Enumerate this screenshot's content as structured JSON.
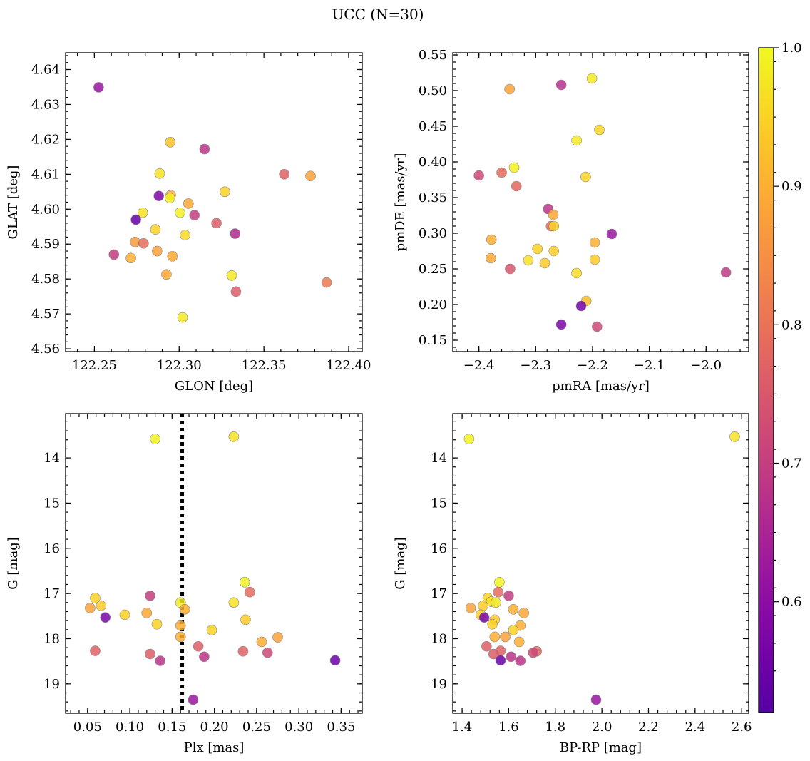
{
  "figure_title": "UCC (N=30)",
  "colorbar": {
    "min": 0.52,
    "max": 1.0,
    "ticks": [
      0.6,
      0.7,
      0.8,
      0.9,
      1.0
    ],
    "tick_labels": [
      "0.6",
      "0.7",
      "0.8",
      "0.9",
      "1.0"
    ],
    "colormap": "plasma"
  },
  "chart_data": [
    {
      "id": "glon-glat",
      "type": "scatter",
      "xlabel": "GLON [deg]",
      "ylabel": "GLAT [deg]",
      "xlim": [
        122.233,
        122.408
      ],
      "ylim": [
        4.5592,
        4.6448
      ],
      "y_inverted": false,
      "xticks": [
        122.25,
        122.3,
        122.35,
        122.4
      ],
      "xtick_labels": [
        "122.25",
        "122.30",
        "122.35",
        "122.40"
      ],
      "yticks": [
        4.56,
        4.57,
        4.58,
        4.59,
        4.6,
        4.61,
        4.62,
        4.63,
        4.64
      ],
      "ytick_labels": [
        "4.56",
        "4.57",
        "4.58",
        "4.59",
        "4.60",
        "4.61",
        "4.62",
        "4.63",
        "4.64"
      ],
      "points": [
        {
          "x": 122.2525,
          "y": 4.6349,
          "c": 0.62
        },
        {
          "x": 122.2947,
          "y": 4.6192,
          "c": 0.93
        },
        {
          "x": 122.315,
          "y": 4.6172,
          "c": 0.68
        },
        {
          "x": 122.2885,
          "y": 4.6102,
          "c": 0.97
        },
        {
          "x": 122.362,
          "y": 4.61,
          "c": 0.77
        },
        {
          "x": 122.3775,
          "y": 4.6095,
          "c": 0.88
        },
        {
          "x": 122.327,
          "y": 4.605,
          "c": 0.95
        },
        {
          "x": 122.288,
          "y": 4.6038,
          "c": 0.58
        },
        {
          "x": 122.295,
          "y": 4.604,
          "c": 0.9
        },
        {
          "x": 122.2945,
          "y": 4.6032,
          "c": 0.99
        },
        {
          "x": 122.3055,
          "y": 4.6016,
          "c": 0.89
        },
        {
          "x": 122.2785,
          "y": 4.599,
          "c": 0.97
        },
        {
          "x": 122.3005,
          "y": 4.599,
          "c": 0.99
        },
        {
          "x": 122.309,
          "y": 4.5983,
          "c": 0.7
        },
        {
          "x": 122.2745,
          "y": 4.597,
          "c": 0.54
        },
        {
          "x": 122.322,
          "y": 4.596,
          "c": 0.76
        },
        {
          "x": 122.286,
          "y": 4.5942,
          "c": 0.95
        },
        {
          "x": 122.333,
          "y": 4.593,
          "c": 0.66
        },
        {
          "x": 122.3035,
          "y": 4.5926,
          "c": 0.96
        },
        {
          "x": 122.274,
          "y": 4.5906,
          "c": 0.87
        },
        {
          "x": 122.279,
          "y": 4.5902,
          "c": 0.79
        },
        {
          "x": 122.287,
          "y": 4.588,
          "c": 0.88
        },
        {
          "x": 122.2615,
          "y": 4.587,
          "c": 0.7
        },
        {
          "x": 122.296,
          "y": 4.5865,
          "c": 0.89
        },
        {
          "x": 122.2715,
          "y": 4.586,
          "c": 0.9
        },
        {
          "x": 122.2925,
          "y": 4.5813,
          "c": 0.89
        },
        {
          "x": 122.331,
          "y": 4.581,
          "c": 0.98
        },
        {
          "x": 122.387,
          "y": 4.579,
          "c": 0.81
        },
        {
          "x": 122.3335,
          "y": 4.5764,
          "c": 0.76
        },
        {
          "x": 122.302,
          "y": 4.569,
          "c": 0.98
        }
      ]
    },
    {
      "id": "pm",
      "type": "scatter",
      "xlabel": "pmRA [mas/yr]",
      "ylabel": "pmDE [mas/yr]",
      "xlim": [
        -2.446,
        -1.925
      ],
      "ylim": [
        0.134,
        0.553
      ],
      "y_inverted": false,
      "xticks": [
        -2.4,
        -2.3,
        -2.2,
        -2.1,
        -2.0
      ],
      "xtick_labels": [
        "−2.4",
        "−2.3",
        "−2.2",
        "−2.1",
        "−2.0"
      ],
      "yticks": [
        0.15,
        0.2,
        0.25,
        0.3,
        0.35,
        0.4,
        0.45,
        0.5,
        0.55
      ],
      "ytick_labels": [
        "0.15",
        "0.20",
        "0.25",
        "0.30",
        "0.35",
        "0.40",
        "0.45",
        "0.50",
        "0.55"
      ],
      "points": [
        {
          "x": -2.201,
          "y": 0.517,
          "c": 0.98
        },
        {
          "x": -2.255,
          "y": 0.508,
          "c": 0.67
        },
        {
          "x": -2.346,
          "y": 0.502,
          "c": 0.88
        },
        {
          "x": -2.188,
          "y": 0.445,
          "c": 0.95
        },
        {
          "x": -2.228,
          "y": 0.43,
          "c": 0.98
        },
        {
          "x": -2.338,
          "y": 0.392,
          "c": 0.99
        },
        {
          "x": -2.36,
          "y": 0.385,
          "c": 0.79
        },
        {
          "x": -2.4,
          "y": 0.381,
          "c": 0.72
        },
        {
          "x": -2.212,
          "y": 0.379,
          "c": 0.95
        },
        {
          "x": -2.334,
          "y": 0.366,
          "c": 0.78
        },
        {
          "x": -2.278,
          "y": 0.334,
          "c": 0.68
        },
        {
          "x": -2.269,
          "y": 0.326,
          "c": 0.89
        },
        {
          "x": -2.166,
          "y": 0.299,
          "c": 0.62
        },
        {
          "x": -2.273,
          "y": 0.31,
          "c": 0.79
        },
        {
          "x": -2.268,
          "y": 0.31,
          "c": 0.95
        },
        {
          "x": -2.378,
          "y": 0.291,
          "c": 0.9
        },
        {
          "x": -2.196,
          "y": 0.287,
          "c": 0.9
        },
        {
          "x": -2.297,
          "y": 0.278,
          "c": 0.95
        },
        {
          "x": -2.268,
          "y": 0.275,
          "c": 0.94
        },
        {
          "x": -2.379,
          "y": 0.265,
          "c": 0.89
        },
        {
          "x": -2.196,
          "y": 0.263,
          "c": 0.94
        },
        {
          "x": -2.313,
          "y": 0.262,
          "c": 0.97
        },
        {
          "x": -2.284,
          "y": 0.258,
          "c": 0.94
        },
        {
          "x": -2.345,
          "y": 0.25,
          "c": 0.75
        },
        {
          "x": -1.965,
          "y": 0.245,
          "c": 0.69
        },
        {
          "x": -2.228,
          "y": 0.244,
          "c": 0.96
        },
        {
          "x": -2.211,
          "y": 0.205,
          "c": 0.92
        },
        {
          "x": -2.22,
          "y": 0.198,
          "c": 0.56
        },
        {
          "x": -2.255,
          "y": 0.172,
          "c": 0.57
        },
        {
          "x": -2.192,
          "y": 0.169,
          "c": 0.72
        }
      ]
    },
    {
      "id": "plx-g",
      "type": "scatter",
      "xlabel": "Plx [mas]",
      "ylabel": "G [mag]",
      "xlim": [
        0.024,
        0.375
      ],
      "ylim": [
        13.02,
        19.65
      ],
      "y_inverted": true,
      "xticks": [
        0.05,
        0.1,
        0.15,
        0.2,
        0.25,
        0.3,
        0.35
      ],
      "xtick_labels": [
        "0.05",
        "0.10",
        "0.15",
        "0.20",
        "0.25",
        "0.30",
        "0.35"
      ],
      "yticks": [
        14,
        15,
        16,
        17,
        18,
        19
      ],
      "ytick_labels": [
        "14",
        "15",
        "16",
        "17",
        "18",
        "19"
      ],
      "vline": 0.162,
      "points": [
        {
          "x": 0.13,
          "y": 13.58,
          "c": 0.99
        },
        {
          "x": 0.223,
          "y": 13.53,
          "c": 0.97
        },
        {
          "x": 0.236,
          "y": 16.75,
          "c": 0.99
        },
        {
          "x": 0.242,
          "y": 16.97,
          "c": 0.79
        },
        {
          "x": 0.124,
          "y": 17.05,
          "c": 0.7
        },
        {
          "x": 0.059,
          "y": 17.1,
          "c": 0.95
        },
        {
          "x": 0.223,
          "y": 17.2,
          "c": 0.97
        },
        {
          "x": 0.16,
          "y": 17.2,
          "c": 0.98
        },
        {
          "x": 0.066,
          "y": 17.27,
          "c": 0.94
        },
        {
          "x": 0.053,
          "y": 17.32,
          "c": 0.88
        },
        {
          "x": 0.165,
          "y": 17.35,
          "c": 0.9
        },
        {
          "x": 0.12,
          "y": 17.43,
          "c": 0.89
        },
        {
          "x": 0.094,
          "y": 17.47,
          "c": 0.95
        },
        {
          "x": 0.071,
          "y": 17.53,
          "c": 0.57
        },
        {
          "x": 0.237,
          "y": 17.58,
          "c": 0.94
        },
        {
          "x": 0.132,
          "y": 17.68,
          "c": 0.95
        },
        {
          "x": 0.16,
          "y": 17.71,
          "c": 0.9
        },
        {
          "x": 0.197,
          "y": 17.81,
          "c": 0.95
        },
        {
          "x": 0.16,
          "y": 17.96,
          "c": 0.9
        },
        {
          "x": 0.275,
          "y": 17.97,
          "c": 0.88
        },
        {
          "x": 0.256,
          "y": 18.07,
          "c": 0.9
        },
        {
          "x": 0.181,
          "y": 18.17,
          "c": 0.76
        },
        {
          "x": 0.059,
          "y": 18.27,
          "c": 0.77
        },
        {
          "x": 0.234,
          "y": 18.28,
          "c": 0.77
        },
        {
          "x": 0.263,
          "y": 18.31,
          "c": 0.72
        },
        {
          "x": 0.124,
          "y": 18.34,
          "c": 0.76
        },
        {
          "x": 0.188,
          "y": 18.4,
          "c": 0.68
        },
        {
          "x": 0.343,
          "y": 18.48,
          "c": 0.55
        },
        {
          "x": 0.136,
          "y": 18.49,
          "c": 0.68
        },
        {
          "x": 0.175,
          "y": 19.35,
          "c": 0.62
        }
      ]
    },
    {
      "id": "cmd",
      "type": "scatter",
      "xlabel": "BP-RP [mag]",
      "ylabel": "G [mag]",
      "xlim": [
        1.36,
        2.63
      ],
      "ylim": [
        13.02,
        19.65
      ],
      "y_inverted": true,
      "xticks": [
        1.4,
        1.6,
        1.8,
        2.0,
        2.2,
        2.4,
        2.6
      ],
      "xtick_labels": [
        "1.4",
        "1.6",
        "1.8",
        "2.0",
        "2.2",
        "2.4",
        "2.6"
      ],
      "yticks": [
        14,
        15,
        16,
        17,
        18,
        19
      ],
      "ytick_labels": [
        "14",
        "15",
        "16",
        "17",
        "18",
        "19"
      ],
      "points": [
        {
          "x": 1.43,
          "y": 13.58,
          "c": 0.99
        },
        {
          "x": 2.57,
          "y": 13.53,
          "c": 0.97
        },
        {
          "x": 1.56,
          "y": 16.75,
          "c": 0.99
        },
        {
          "x": 1.555,
          "y": 16.97,
          "c": 0.79
        },
        {
          "x": 1.6,
          "y": 17.05,
          "c": 0.7
        },
        {
          "x": 1.51,
          "y": 17.1,
          "c": 0.95
        },
        {
          "x": 1.525,
          "y": 17.18,
          "c": 0.97
        },
        {
          "x": 1.545,
          "y": 17.2,
          "c": 0.98
        },
        {
          "x": 1.49,
          "y": 17.27,
          "c": 0.94
        },
        {
          "x": 1.437,
          "y": 17.32,
          "c": 0.88
        },
        {
          "x": 1.62,
          "y": 17.35,
          "c": 0.9
        },
        {
          "x": 1.665,
          "y": 17.43,
          "c": 0.89
        },
        {
          "x": 1.48,
          "y": 17.47,
          "c": 0.95
        },
        {
          "x": 1.495,
          "y": 17.53,
          "c": 0.57
        },
        {
          "x": 1.54,
          "y": 17.58,
          "c": 0.94
        },
        {
          "x": 1.53,
          "y": 17.68,
          "c": 0.95
        },
        {
          "x": 1.65,
          "y": 17.71,
          "c": 0.9
        },
        {
          "x": 1.62,
          "y": 17.81,
          "c": 0.95
        },
        {
          "x": 1.54,
          "y": 17.96,
          "c": 0.9
        },
        {
          "x": 1.585,
          "y": 17.96,
          "c": 0.88
        },
        {
          "x": 1.645,
          "y": 18.07,
          "c": 0.9
        },
        {
          "x": 1.505,
          "y": 18.17,
          "c": 0.76
        },
        {
          "x": 1.565,
          "y": 18.27,
          "c": 0.77
        },
        {
          "x": 1.72,
          "y": 18.28,
          "c": 0.77
        },
        {
          "x": 1.705,
          "y": 18.31,
          "c": 0.72
        },
        {
          "x": 1.535,
          "y": 18.34,
          "c": 0.76
        },
        {
          "x": 1.61,
          "y": 18.4,
          "c": 0.68
        },
        {
          "x": 1.565,
          "y": 18.48,
          "c": 0.55
        },
        {
          "x": 1.65,
          "y": 18.49,
          "c": 0.68
        },
        {
          "x": 1.975,
          "y": 19.35,
          "c": 0.62
        }
      ]
    }
  ]
}
